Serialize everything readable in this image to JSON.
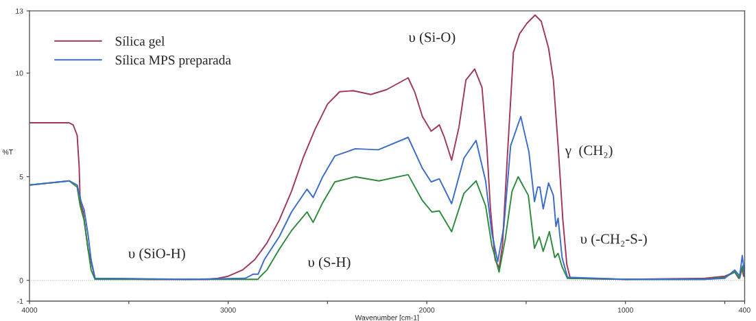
{
  "chart_data": {
    "type": "line",
    "xlabel": "Wavenumber [cm-1]",
    "ylabel": "%T",
    "xlim": [
      4000,
      400
    ],
    "ylim": [
      -1,
      13
    ],
    "xticks": [
      4000,
      {
        "value": 3500,
        "label": null
      },
      3000,
      {
        "value": 2500,
        "label": null
      },
      2000,
      {
        "value": 1500,
        "label": null
      },
      1000,
      {
        "value": 500,
        "label": null
      },
      400
    ],
    "yticks": [
      -1,
      0,
      5,
      10,
      13
    ],
    "grid": false,
    "legend": "top left",
    "marker": "none",
    "line_style": "solid",
    "ref_lines": [
      {
        "axis": "y",
        "value": 0,
        "color": "#b0b0b0",
        "line_style": "dotted"
      }
    ],
    "annotations": [
      "υ (SiO-H)",
      "υ (S-H)",
      "υ (Si-O)",
      "γ  (CH₂)",
      "υ (-CH₂-S-)"
    ],
    "series": [
      {
        "name": "Sílica gel",
        "color": "#a0365e",
        "x": [
          4000,
          3900,
          3800,
          3780,
          3760,
          3750,
          3745,
          3730,
          3705,
          3670,
          3400,
          3100,
          3050,
          3000,
          2928,
          2866,
          2805,
          2743,
          2681,
          2623,
          2562,
          2500,
          2439,
          2370,
          2282,
          2203,
          2094,
          2060,
          2022,
          1978,
          1937,
          1913,
          1875,
          1838,
          1803,
          1759,
          1722,
          1698,
          1680,
          1656,
          1636,
          1619,
          1595,
          1564,
          1533,
          1496,
          1455,
          1424,
          1387,
          1363,
          1339,
          1315,
          1295,
          1278,
          1000,
          600,
          500,
          450,
          430,
          415,
          405,
          400
        ],
        "values": [
          7.6,
          7.6,
          7.6,
          7.5,
          7.0,
          5.5,
          3.8,
          3.3,
          1.5,
          0.1,
          0.05,
          0.05,
          0.1,
          0.2,
          0.5,
          1.0,
          1.8,
          2.9,
          4.3,
          5.9,
          7.3,
          8.5,
          9.1,
          9.15,
          8.97,
          9.2,
          9.77,
          9.07,
          7.9,
          7.2,
          7.5,
          6.94,
          5.8,
          7.4,
          9.67,
          10.2,
          9.3,
          6.5,
          3.5,
          1.0,
          0.6,
          1.7,
          5.9,
          11.0,
          11.9,
          12.4,
          12.8,
          12.5,
          11.2,
          9.67,
          6.5,
          2.9,
          0.76,
          0.1,
          0.05,
          0.1,
          0.2,
          0.4,
          0.1,
          0.6,
          0.2,
          0.3
        ]
      },
      {
        "color": "#2e8b3e",
        "x": [
          4000,
          3900,
          3800,
          3760,
          3745,
          3725,
          3705,
          3690,
          3670,
          3200,
          2850,
          2842,
          2805,
          2743,
          2681,
          2603,
          2572,
          2524,
          2463,
          2360,
          2241,
          2094,
          2022,
          1974,
          1937,
          1875,
          1813,
          1752,
          1704,
          1673,
          1636,
          1605,
          1571,
          1540,
          1489,
          1458,
          1434,
          1414,
          1383,
          1356,
          1339,
          1319,
          1292,
          1000,
          600,
          500,
          450,
          425,
          410,
          400
        ],
        "values": [
          4.6,
          4.7,
          4.8,
          4.5,
          3.6,
          2.9,
          1.5,
          0.5,
          0.05,
          0.05,
          0.05,
          0.15,
          0.5,
          1.5,
          2.4,
          3.3,
          2.8,
          3.75,
          4.75,
          5.0,
          4.8,
          5.1,
          3.85,
          3.3,
          3.35,
          2.35,
          4.2,
          4.8,
          3.6,
          1.7,
          0.4,
          2.0,
          4.3,
          5.0,
          4.1,
          1.55,
          2.1,
          1.4,
          2.35,
          1.1,
          1.3,
          0.65,
          0.1,
          0.05,
          0.05,
          0.15,
          0.4,
          0.1,
          0.7,
          0.2
        ]
      },
      {
        "name": "Sílica MPS preparada",
        "color": "#3a6cc8",
        "x": [
          4000,
          3900,
          3800,
          3760,
          3740,
          3725,
          3705,
          3690,
          3670,
          3200,
          2914,
          2873,
          2849,
          2818,
          2743,
          2681,
          2603,
          2572,
          2524,
          2463,
          2360,
          2244,
          2094,
          2022,
          1978,
          1937,
          1875,
          1813,
          1752,
          1704,
          1673,
          1643,
          1612,
          1578,
          1527,
          1486,
          1458,
          1442,
          1431,
          1414,
          1387,
          1363,
          1350,
          1339,
          1319,
          1292,
          1000,
          600,
          500,
          450,
          425,
          412,
          400
        ],
        "values": [
          4.6,
          4.7,
          4.8,
          4.6,
          3.8,
          3.4,
          2.2,
          1.0,
          0.1,
          0.05,
          0.1,
          0.3,
          0.3,
          1.0,
          2.1,
          3.3,
          4.4,
          4.0,
          5.0,
          6.0,
          6.35,
          6.3,
          6.9,
          5.4,
          4.75,
          4.9,
          3.7,
          5.9,
          6.75,
          4.8,
          2.3,
          0.9,
          2.6,
          6.5,
          7.9,
          6.2,
          3.8,
          4.5,
          4.5,
          3.45,
          4.7,
          4.1,
          2.6,
          3.0,
          1.1,
          0.15,
          0.05,
          0.05,
          0.1,
          0.5,
          0.2,
          1.2,
          0.3
        ]
      }
    ]
  }
}
